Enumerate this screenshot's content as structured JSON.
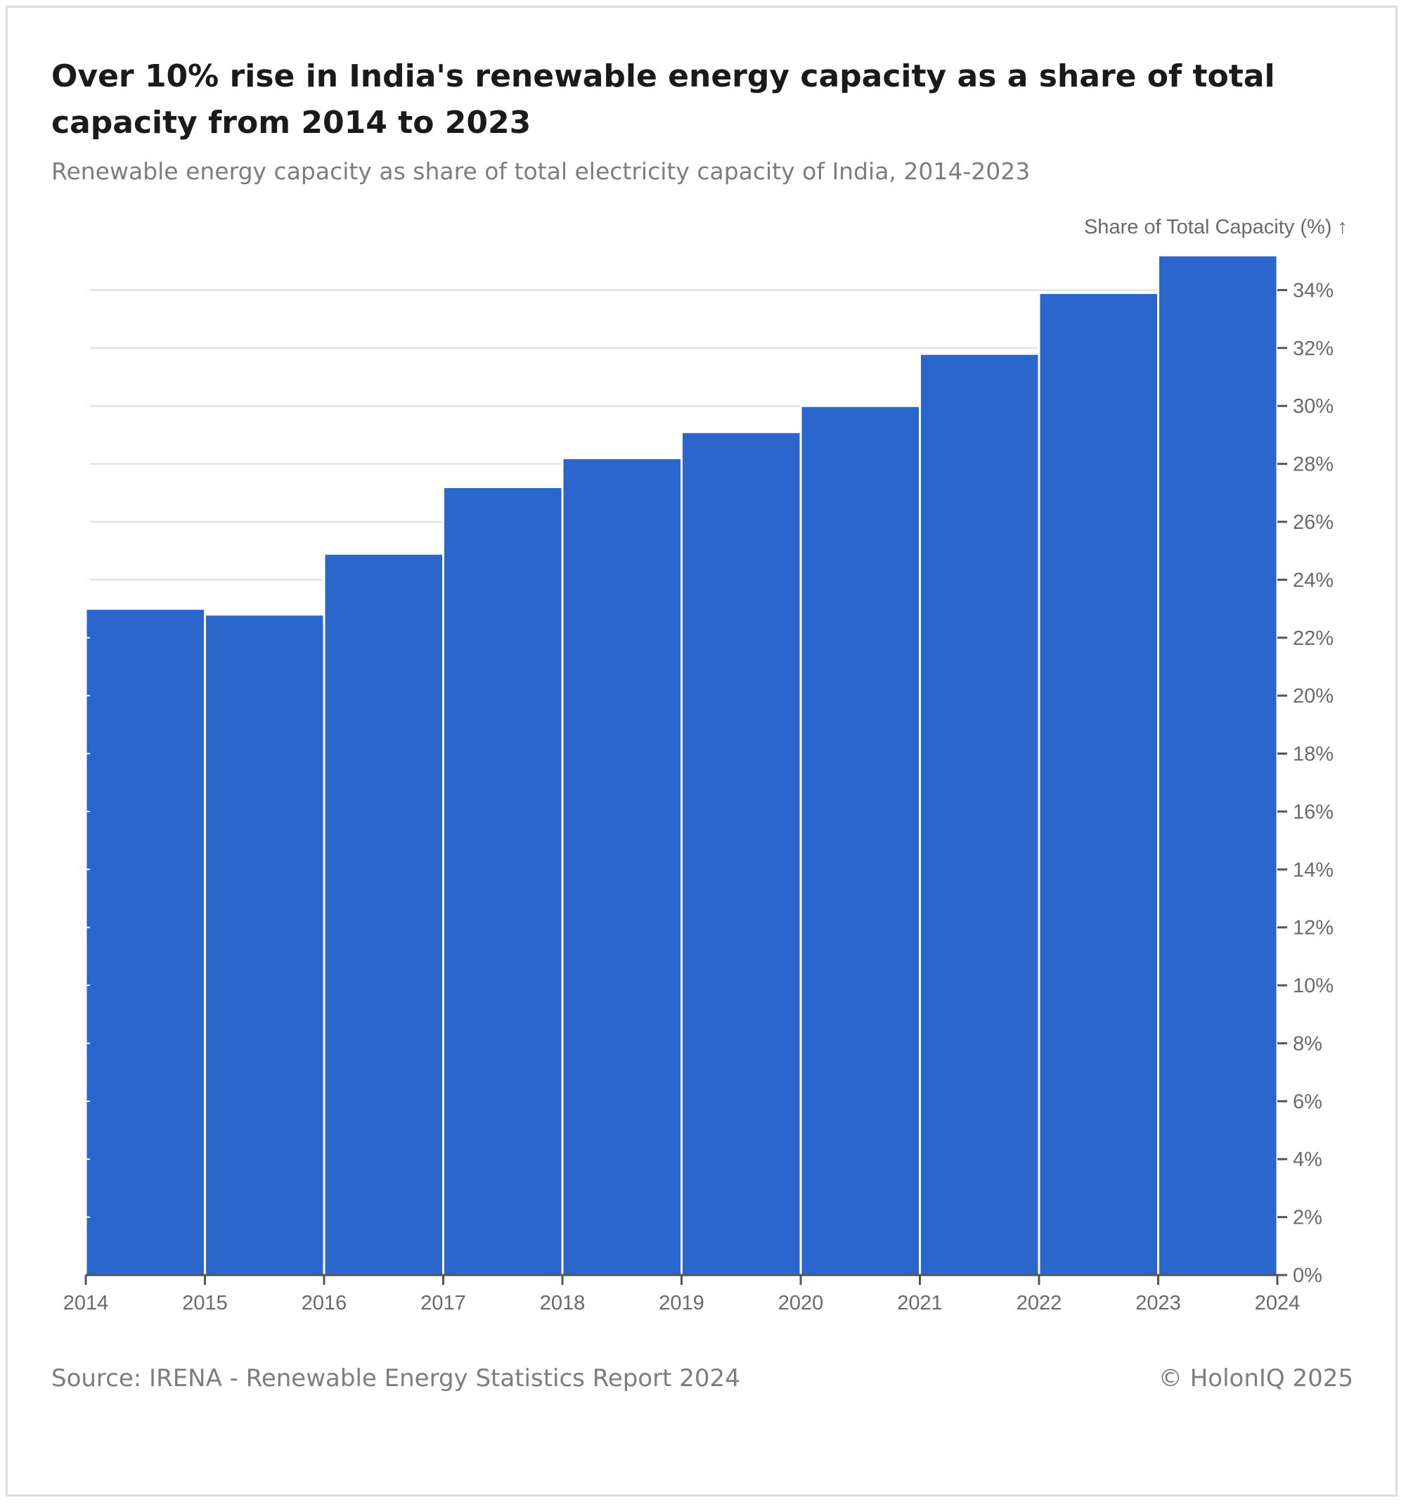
{
  "header": {
    "title": "Over 10% rise in India's renewable energy capacity as a share of total capacity from 2014 to 2023",
    "subtitle": "Renewable energy capacity as share of total electricity capacity of India, 2014-2023"
  },
  "footer": {
    "source": "Source: IRENA - Renewable Energy Statistics Report 2024",
    "copyright": "© HolonIQ 2025"
  },
  "colors": {
    "bar": "#2a66cc",
    "grid": "#e3e3e3",
    "axis": "#555555",
    "tick_text": "#6a6a6a"
  },
  "chart_data": {
    "type": "bar",
    "ylabel": "Share of Total Capacity (%) ↑",
    "y_axis_side": "right",
    "ylim": [
      0,
      35.2
    ],
    "y_ticks": [
      0,
      2,
      4,
      6,
      8,
      10,
      12,
      14,
      16,
      18,
      20,
      22,
      24,
      26,
      28,
      30,
      32,
      34
    ],
    "y_tick_suffix": "%",
    "x_ticks": [
      "2014",
      "2015",
      "2016",
      "2017",
      "2018",
      "2019",
      "2020",
      "2021",
      "2022",
      "2023",
      "2024"
    ],
    "grid": true,
    "bins": [
      {
        "start": 2014,
        "end": 2015,
        "value": 23.0
      },
      {
        "start": 2015,
        "end": 2016,
        "value": 22.8
      },
      {
        "start": 2016,
        "end": 2017,
        "value": 24.9
      },
      {
        "start": 2017,
        "end": 2018,
        "value": 27.2
      },
      {
        "start": 2018,
        "end": 2019,
        "value": 28.2
      },
      {
        "start": 2019,
        "end": 2020,
        "value": 29.1
      },
      {
        "start": 2020,
        "end": 2021,
        "value": 30.0
      },
      {
        "start": 2021,
        "end": 2022,
        "value": 31.8
      },
      {
        "start": 2022,
        "end": 2023,
        "value": 33.9
      },
      {
        "start": 2023,
        "end": 2024,
        "value": 35.2
      }
    ]
  }
}
